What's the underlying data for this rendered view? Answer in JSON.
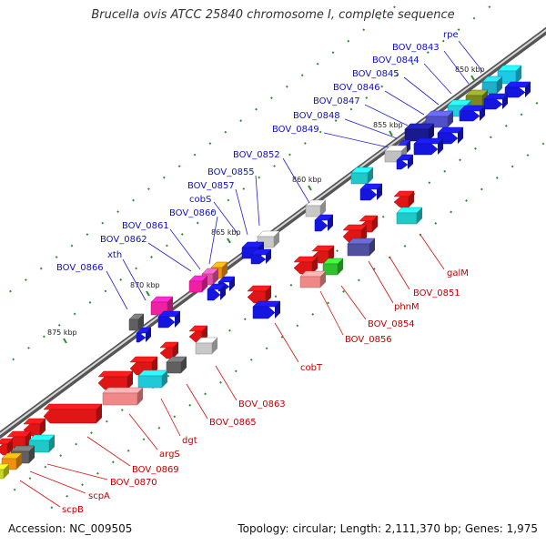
{
  "title": "Brucella ovis ATCC 25840 chromosome I, complete sequence",
  "accession": "Accession: NC_009505",
  "summary": "Topology: circular; Length: 2,111,370 bp; Genes: 1,975",
  "colors": {
    "forward_label": "#1010c0",
    "reverse_label": "#c00000",
    "backbone": "#555555",
    "cds_forward": "#1515e0",
    "cds_reverse": "#e01515"
  },
  "scale_ticks": [
    {
      "label": "850 kbp"
    },
    {
      "label": "855 kbp"
    },
    {
      "label": "860 kbp"
    },
    {
      "label": "865 kbp"
    },
    {
      "label": "870 kbp"
    },
    {
      "label": "875 kbp"
    }
  ],
  "forward_genes": [
    {
      "name": "rpe"
    },
    {
      "name": "BOV_0843"
    },
    {
      "name": "BOV_0844"
    },
    {
      "name": "BOV_0845"
    },
    {
      "name": "BOV_0846"
    },
    {
      "name": "BOV_0847"
    },
    {
      "name": "BOV_0848"
    },
    {
      "name": "BOV_0849"
    },
    {
      "name": "BOV_0852"
    },
    {
      "name": "BOV_0855"
    },
    {
      "name": "BOV_0857"
    },
    {
      "name": "cobS"
    },
    {
      "name": "BOV_0860"
    },
    {
      "name": "BOV_0861"
    },
    {
      "name": "BOV_0862"
    },
    {
      "name": "xth"
    },
    {
      "name": "BOV_0866"
    }
  ],
  "reverse_genes": [
    {
      "name": "galM"
    },
    {
      "name": "BOV_0851"
    },
    {
      "name": "phnM"
    },
    {
      "name": "BOV_0854"
    },
    {
      "name": "BOV_0856"
    },
    {
      "name": "cobT"
    },
    {
      "name": "BOV_0863"
    },
    {
      "name": "BOV_0865"
    },
    {
      "name": "dgt"
    },
    {
      "name": "argS"
    },
    {
      "name": "BOV_0869"
    },
    {
      "name": "BOV_0870"
    },
    {
      "name": "scpA"
    },
    {
      "name": "scpB"
    }
  ]
}
